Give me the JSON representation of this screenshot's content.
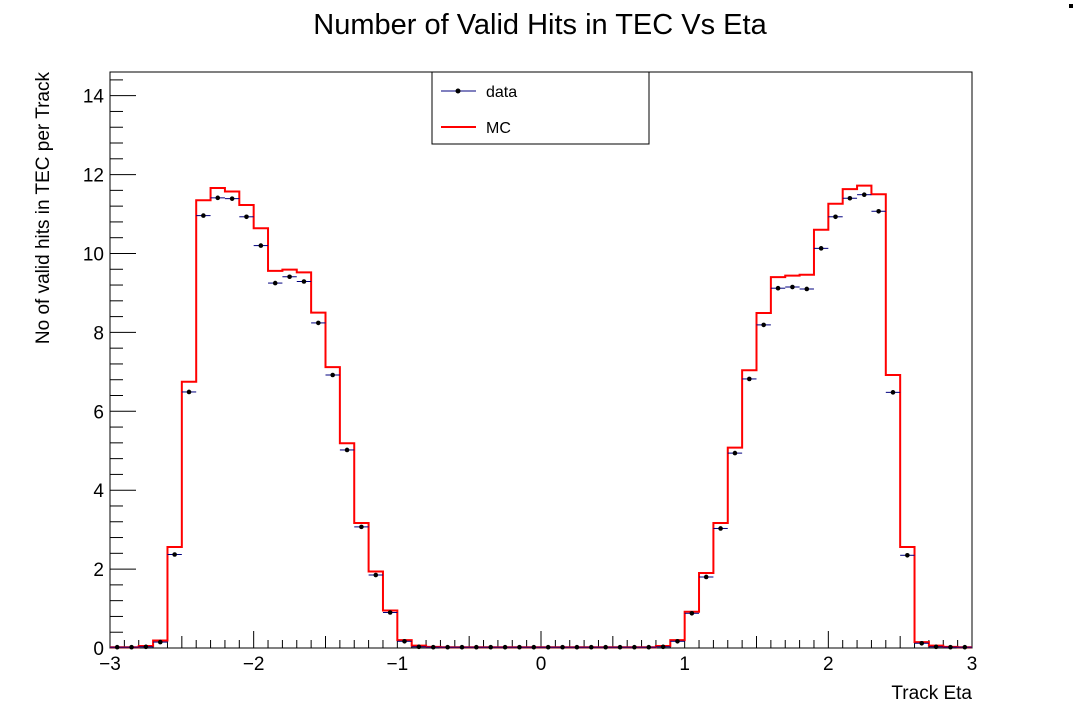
{
  "chart_data": {
    "type": "histogram",
    "title": "Number of Valid Hits in TEC Vs Eta",
    "xlabel": "Track Eta",
    "ylabel": "No of valid hits in TEC per Track",
    "xlim": [
      -3,
      3
    ],
    "ylim": [
      0,
      14.6
    ],
    "x_ticks": [
      -3,
      -2,
      -1,
      0,
      1,
      2,
      3
    ],
    "x_tick_labels": [
      "−3",
      "−2",
      "−1",
      "0",
      "1",
      "2",
      "3"
    ],
    "y_ticks": [
      0,
      2,
      4,
      6,
      8,
      10,
      12,
      14
    ],
    "y_tick_labels": [
      "0",
      "2",
      "4",
      "6",
      "8",
      "10",
      "12",
      "14"
    ],
    "bin_edges_start": -3,
    "bin_width": 0.1,
    "legend": {
      "position": "top-center",
      "entries": [
        "data",
        "MC"
      ]
    },
    "series": [
      {
        "name": "data",
        "style": "markers-with-xerror",
        "color": "#000000",
        "line_color": "#00007f",
        "values": [
          0.02,
          0.02,
          0.03,
          0.15,
          2.37,
          6.49,
          10.96,
          11.41,
          11.39,
          10.93,
          10.2,
          9.25,
          9.41,
          9.29,
          8.24,
          6.92,
          5.02,
          3.07,
          1.85,
          0.9,
          0.17,
          0.03,
          0.02,
          0.02,
          0.02,
          0.02,
          0.02,
          0.02,
          0.02,
          0.02,
          0.02,
          0.02,
          0.02,
          0.02,
          0.02,
          0.02,
          0.02,
          0.02,
          0.03,
          0.17,
          0.88,
          1.8,
          3.03,
          4.94,
          6.82,
          8.19,
          9.12,
          9.15,
          9.1,
          10.13,
          10.93,
          11.4,
          11.49,
          11.07,
          6.48,
          2.35,
          0.12,
          0.03,
          0.02,
          0.02
        ]
      },
      {
        "name": "MC",
        "style": "step",
        "color": "#ff0000",
        "values": [
          0.02,
          0.02,
          0.05,
          0.19,
          2.56,
          6.75,
          11.35,
          11.66,
          11.57,
          11.23,
          10.64,
          9.56,
          9.59,
          9.52,
          8.5,
          7.12,
          5.19,
          3.17,
          1.94,
          0.95,
          0.2,
          0.06,
          0.03,
          0.02,
          0.02,
          0.02,
          0.02,
          0.02,
          0.02,
          0.02,
          0.02,
          0.02,
          0.02,
          0.02,
          0.02,
          0.02,
          0.02,
          0.02,
          0.05,
          0.2,
          0.92,
          1.9,
          3.17,
          5.08,
          7.04,
          8.49,
          9.4,
          9.44,
          9.46,
          10.6,
          11.26,
          11.63,
          11.72,
          11.5,
          6.92,
          2.56,
          0.15,
          0.06,
          0.03,
          0.02
        ]
      }
    ]
  }
}
